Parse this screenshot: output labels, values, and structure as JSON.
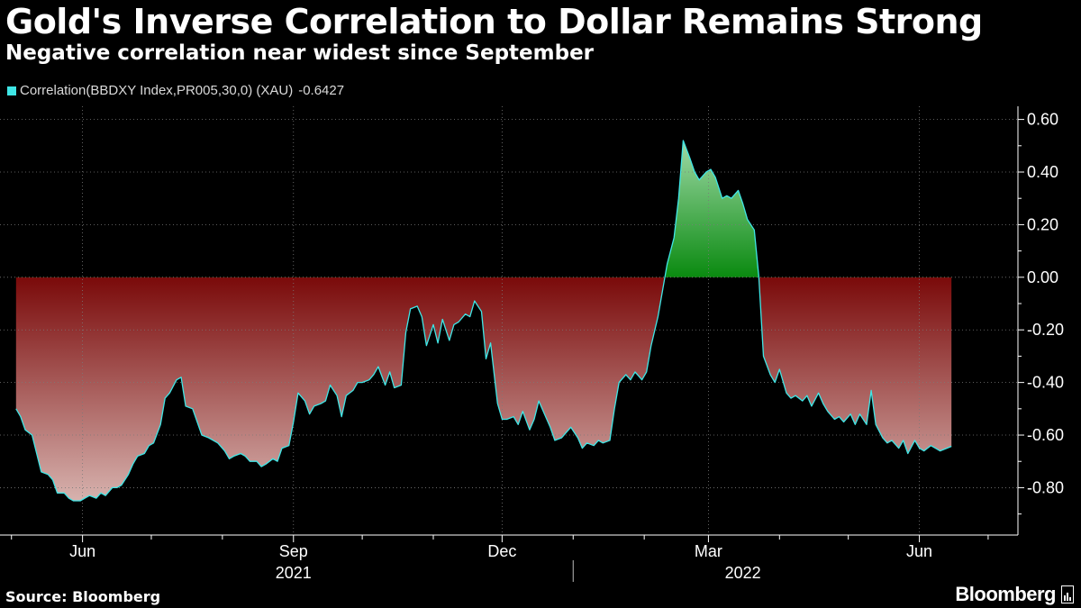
{
  "header": {
    "title": "Gold's Inverse Correlation to Dollar Remains Strong",
    "subtitle": "Negative correlation near widest since September"
  },
  "legend": {
    "swatch_color": "#3fe6e6",
    "series_label": "Correlation(BBDXY Index,PR005,30,0) (XAU)",
    "last_value": "-0.6427"
  },
  "footer": {
    "source": "Source: Bloomberg",
    "brand": "Bloomberg"
  },
  "chart_data": {
    "type": "area",
    "series": [
      {
        "name": "Correlation(BBDXY Index,PR005,30,0) (XAU)",
        "color": "#3fe6e6",
        "points": [
          [
            "2021-05-03",
            -0.5
          ],
          [
            "2021-05-05",
            -0.53
          ],
          [
            "2021-05-07",
            -0.58
          ],
          [
            "2021-05-10",
            -0.6
          ],
          [
            "2021-05-12",
            -0.67
          ],
          [
            "2021-05-14",
            -0.74
          ],
          [
            "2021-05-17",
            -0.75
          ],
          [
            "2021-05-19",
            -0.77
          ],
          [
            "2021-05-21",
            -0.82
          ],
          [
            "2021-05-24",
            -0.82
          ],
          [
            "2021-05-26",
            -0.84
          ],
          [
            "2021-05-28",
            -0.85
          ],
          [
            "2021-05-31",
            -0.85
          ],
          [
            "2021-06-02",
            -0.84
          ],
          [
            "2021-06-04",
            -0.83
          ],
          [
            "2021-06-07",
            -0.84
          ],
          [
            "2021-06-09",
            -0.82
          ],
          [
            "2021-06-11",
            -0.83
          ],
          [
            "2021-06-14",
            -0.8
          ],
          [
            "2021-06-16",
            -0.8
          ],
          [
            "2021-06-18",
            -0.79
          ],
          [
            "2021-06-21",
            -0.75
          ],
          [
            "2021-06-23",
            -0.71
          ],
          [
            "2021-06-25",
            -0.68
          ],
          [
            "2021-06-28",
            -0.67
          ],
          [
            "2021-06-30",
            -0.64
          ],
          [
            "2021-07-02",
            -0.63
          ],
          [
            "2021-07-05",
            -0.56
          ],
          [
            "2021-07-07",
            -0.46
          ],
          [
            "2021-07-09",
            -0.44
          ],
          [
            "2021-07-12",
            -0.39
          ],
          [
            "2021-07-14",
            -0.38
          ],
          [
            "2021-07-16",
            -0.49
          ],
          [
            "2021-07-19",
            -0.5
          ],
          [
            "2021-07-21",
            -0.55
          ],
          [
            "2021-07-23",
            -0.6
          ],
          [
            "2021-07-26",
            -0.61
          ],
          [
            "2021-07-28",
            -0.62
          ],
          [
            "2021-07-30",
            -0.63
          ],
          [
            "2021-08-02",
            -0.66
          ],
          [
            "2021-08-04",
            -0.69
          ],
          [
            "2021-08-06",
            -0.68
          ],
          [
            "2021-08-09",
            -0.67
          ],
          [
            "2021-08-11",
            -0.68
          ],
          [
            "2021-08-13",
            -0.7
          ],
          [
            "2021-08-16",
            -0.7
          ],
          [
            "2021-08-18",
            -0.72
          ],
          [
            "2021-08-20",
            -0.71
          ],
          [
            "2021-08-23",
            -0.69
          ],
          [
            "2021-08-25",
            -0.7
          ],
          [
            "2021-08-27",
            -0.65
          ],
          [
            "2021-08-30",
            -0.64
          ],
          [
            "2021-09-01",
            -0.55
          ],
          [
            "2021-09-03",
            -0.44
          ],
          [
            "2021-09-06",
            -0.47
          ],
          [
            "2021-09-08",
            -0.52
          ],
          [
            "2021-09-10",
            -0.49
          ],
          [
            "2021-09-13",
            -0.48
          ],
          [
            "2021-09-15",
            -0.47
          ],
          [
            "2021-09-17",
            -0.41
          ],
          [
            "2021-09-20",
            -0.45
          ],
          [
            "2021-09-22",
            -0.53
          ],
          [
            "2021-09-24",
            -0.45
          ],
          [
            "2021-09-27",
            -0.43
          ],
          [
            "2021-09-29",
            -0.4
          ],
          [
            "2021-10-01",
            -0.4
          ],
          [
            "2021-10-04",
            -0.39
          ],
          [
            "2021-10-06",
            -0.37
          ],
          [
            "2021-10-08",
            -0.34
          ],
          [
            "2021-10-11",
            -0.41
          ],
          [
            "2021-10-13",
            -0.36
          ],
          [
            "2021-10-15",
            -0.42
          ],
          [
            "2021-10-18",
            -0.41
          ],
          [
            "2021-10-20",
            -0.21
          ],
          [
            "2021-10-22",
            -0.12
          ],
          [
            "2021-10-25",
            -0.11
          ],
          [
            "2021-10-27",
            -0.15
          ],
          [
            "2021-10-29",
            -0.26
          ],
          [
            "2021-11-01",
            -0.18
          ],
          [
            "2021-11-03",
            -0.25
          ],
          [
            "2021-11-05",
            -0.16
          ],
          [
            "2021-11-08",
            -0.24
          ],
          [
            "2021-11-10",
            -0.18
          ],
          [
            "2021-11-12",
            -0.17
          ],
          [
            "2021-11-15",
            -0.14
          ],
          [
            "2021-11-17",
            -0.15
          ],
          [
            "2021-11-19",
            -0.09
          ],
          [
            "2021-11-22",
            -0.13
          ],
          [
            "2021-11-24",
            -0.31
          ],
          [
            "2021-11-26",
            -0.25
          ],
          [
            "2021-11-29",
            -0.48
          ],
          [
            "2021-12-01",
            -0.54
          ],
          [
            "2021-12-03",
            -0.54
          ],
          [
            "2021-12-06",
            -0.53
          ],
          [
            "2021-12-08",
            -0.56
          ],
          [
            "2021-12-10",
            -0.51
          ],
          [
            "2021-12-13",
            -0.58
          ],
          [
            "2021-12-15",
            -0.54
          ],
          [
            "2021-12-17",
            -0.47
          ],
          [
            "2021-12-20",
            -0.53
          ],
          [
            "2021-12-22",
            -0.57
          ],
          [
            "2021-12-24",
            -0.62
          ],
          [
            "2021-12-27",
            -0.61
          ],
          [
            "2021-12-29",
            -0.59
          ],
          [
            "2021-12-31",
            -0.57
          ],
          [
            "2022-01-03",
            -0.61
          ],
          [
            "2022-01-05",
            -0.65
          ],
          [
            "2022-01-07",
            -0.63
          ],
          [
            "2022-01-10",
            -0.64
          ],
          [
            "2022-01-12",
            -0.62
          ],
          [
            "2022-01-14",
            -0.63
          ],
          [
            "2022-01-17",
            -0.62
          ],
          [
            "2022-01-19",
            -0.5
          ],
          [
            "2022-01-21",
            -0.4
          ],
          [
            "2022-01-24",
            -0.37
          ],
          [
            "2022-01-26",
            -0.39
          ],
          [
            "2022-01-28",
            -0.36
          ],
          [
            "2022-01-31",
            -0.39
          ],
          [
            "2022-02-02",
            -0.36
          ],
          [
            "2022-02-04",
            -0.26
          ],
          [
            "2022-02-07",
            -0.15
          ],
          [
            "2022-02-09",
            -0.05
          ],
          [
            "2022-02-11",
            0.05
          ],
          [
            "2022-02-14",
            0.15
          ],
          [
            "2022-02-16",
            0.3
          ],
          [
            "2022-02-18",
            0.52
          ],
          [
            "2022-02-21",
            0.45
          ],
          [
            "2022-02-23",
            0.4
          ],
          [
            "2022-02-25",
            0.37
          ],
          [
            "2022-02-28",
            0.4
          ],
          [
            "2022-03-02",
            0.41
          ],
          [
            "2022-03-04",
            0.38
          ],
          [
            "2022-03-07",
            0.3
          ],
          [
            "2022-03-09",
            0.31
          ],
          [
            "2022-03-11",
            0.3
          ],
          [
            "2022-03-14",
            0.33
          ],
          [
            "2022-03-16",
            0.28
          ],
          [
            "2022-03-18",
            0.22
          ],
          [
            "2022-03-21",
            0.18
          ],
          [
            "2022-03-23",
            0.0
          ],
          [
            "2022-03-25",
            -0.3
          ],
          [
            "2022-03-28",
            -0.37
          ],
          [
            "2022-03-30",
            -0.4
          ],
          [
            "2022-04-01",
            -0.35
          ],
          [
            "2022-04-04",
            -0.44
          ],
          [
            "2022-04-06",
            -0.46
          ],
          [
            "2022-04-08",
            -0.45
          ],
          [
            "2022-04-11",
            -0.47
          ],
          [
            "2022-04-13",
            -0.45
          ],
          [
            "2022-04-15",
            -0.49
          ],
          [
            "2022-04-18",
            -0.44
          ],
          [
            "2022-04-20",
            -0.48
          ],
          [
            "2022-04-22",
            -0.51
          ],
          [
            "2022-04-25",
            -0.54
          ],
          [
            "2022-04-27",
            -0.53
          ],
          [
            "2022-04-29",
            -0.55
          ],
          [
            "2022-05-02",
            -0.52
          ],
          [
            "2022-05-04",
            -0.56
          ],
          [
            "2022-05-06",
            -0.52
          ],
          [
            "2022-05-09",
            -0.56
          ],
          [
            "2022-05-11",
            -0.43
          ],
          [
            "2022-05-13",
            -0.56
          ],
          [
            "2022-05-16",
            -0.61
          ],
          [
            "2022-05-18",
            -0.63
          ],
          [
            "2022-05-20",
            -0.62
          ],
          [
            "2022-05-23",
            -0.65
          ],
          [
            "2022-05-25",
            -0.62
          ],
          [
            "2022-05-27",
            -0.67
          ],
          [
            "2022-05-30",
            -0.62
          ],
          [
            "2022-06-01",
            -0.65
          ],
          [
            "2022-06-03",
            -0.66
          ],
          [
            "2022-06-06",
            -0.64
          ],
          [
            "2022-06-08",
            -0.65
          ],
          [
            "2022-06-10",
            -0.66
          ],
          [
            "2022-06-13",
            -0.65
          ],
          [
            "2022-06-15",
            -0.6427
          ]
        ]
      }
    ],
    "x_ticks": [
      {
        "date": "2021-06-01",
        "label": "Jun"
      },
      {
        "date": "2021-09-01",
        "label": "Sep"
      },
      {
        "date": "2021-12-01",
        "label": "Dec"
      },
      {
        "date": "2022-03-01",
        "label": "Mar"
      },
      {
        "date": "2022-06-01",
        "label": "Jun"
      }
    ],
    "x_minor_ticks": [
      "2021-05-01",
      "2021-07-01",
      "2021-08-01",
      "2021-10-01",
      "2021-11-01",
      "2022-01-01",
      "2022-02-01",
      "2022-04-01",
      "2022-05-01",
      "2022-07-01"
    ],
    "year_labels": [
      {
        "date": "2021-09-01",
        "label": "2021"
      },
      {
        "date": "2022-03-16",
        "label": "2022"
      }
    ],
    "year_divider": "2022-01-01",
    "xlim": [
      "2021-04-26",
      "2022-07-14"
    ],
    "y_ticks": [
      0.6,
      0.4,
      0.2,
      0.0,
      -0.2,
      -0.4,
      -0.6,
      -0.8
    ],
    "y_tick_labels": [
      "0.60",
      "0.40",
      "0.20",
      "0.00",
      "-0.20",
      "-0.40",
      "-0.60",
      "-0.80"
    ],
    "ylim": [
      -0.98,
      0.65
    ],
    "grid": true,
    "positive_fill_color": "#0a8a10",
    "negative_fill_color": "#7a0a0a",
    "axis_side": "right"
  }
}
